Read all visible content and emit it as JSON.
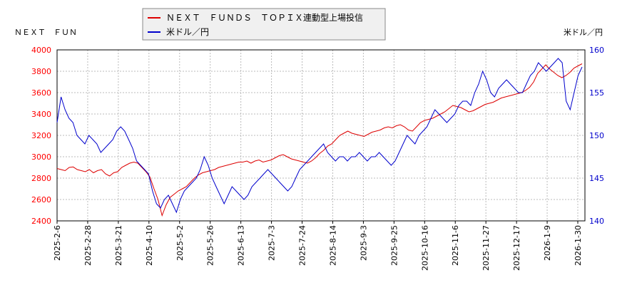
{
  "chart_data": {
    "type": "line",
    "left_axis_title": "ＮＥＸＴ　ＦＵＮ",
    "right_axis_title": "米ドル／円",
    "legend_position": "top-center",
    "grid": true,
    "x_ticks": [
      "2025-2-6",
      "2025-2-28",
      "2025-3-21",
      "2025-4-10",
      "2025-5-2",
      "2025-5-26",
      "2025-6-13",
      "2025-7-3",
      "2025-7-24",
      "2025-8-14",
      "2025-9-3",
      "2025-9-25",
      "2025-10-16",
      "2025-11-6",
      "2025-11-27",
      "2025-12-17",
      "2026-1-9",
      "2026-1-30"
    ],
    "y_left": {
      "min": 2400,
      "max": 4000,
      "ticks": [
        2400,
        2600,
        2800,
        3000,
        3200,
        3400,
        3600,
        3800,
        4000
      ],
      "color": "#ff0000"
    },
    "y_right": {
      "min": 140,
      "max": 160,
      "ticks": [
        140,
        145,
        150,
        155,
        160
      ],
      "color": "#0000cc"
    },
    "series": [
      {
        "name": "ＮＥＸＴ　ＦＵＮＤＳ　ＴＯＰＩＸ連動型上場投信",
        "axis": "left",
        "color": "#dd0000",
        "values": [
          2890,
          2880,
          2870,
          2900,
          2905,
          2880,
          2870,
          2860,
          2880,
          2850,
          2870,
          2880,
          2840,
          2820,
          2850,
          2860,
          2900,
          2920,
          2940,
          2950,
          2940,
          2900,
          2860,
          2810,
          2700,
          2600,
          2450,
          2550,
          2620,
          2650,
          2680,
          2700,
          2720,
          2760,
          2800,
          2830,
          2850,
          2860,
          2870,
          2880,
          2900,
          2910,
          2920,
          2930,
          2940,
          2950,
          2950,
          2960,
          2940,
          2960,
          2970,
          2950,
          2960,
          2970,
          2990,
          3010,
          3020,
          3000,
          2980,
          2970,
          2960,
          2950,
          2940,
          2960,
          2990,
          3030,
          3060,
          3100,
          3120,
          3160,
          3200,
          3220,
          3240,
          3220,
          3210,
          3200,
          3190,
          3210,
          3230,
          3240,
          3250,
          3270,
          3280,
          3270,
          3290,
          3300,
          3280,
          3250,
          3240,
          3280,
          3320,
          3340,
          3350,
          3360,
          3380,
          3400,
          3420,
          3450,
          3480,
          3470,
          3460,
          3440,
          3420,
          3430,
          3450,
          3470,
          3490,
          3500,
          3510,
          3530,
          3550,
          3560,
          3570,
          3580,
          3590,
          3600,
          3620,
          3650,
          3700,
          3780,
          3820,
          3860,
          3820,
          3790,
          3760,
          3740,
          3760,
          3790,
          3830,
          3850,
          3870
        ]
      },
      {
        "name": "米ドル／円",
        "axis": "right",
        "color": "#0000cc",
        "values": [
          151.5,
          154.5,
          153,
          152,
          151.5,
          150,
          149.5,
          149,
          150,
          149.5,
          149,
          148,
          148.5,
          149,
          149.5,
          150.5,
          151,
          150.5,
          149.5,
          148.5,
          147,
          146.5,
          146,
          145.5,
          143.5,
          142,
          141.5,
          142.5,
          143,
          142,
          141,
          142.5,
          143.5,
          144,
          144.5,
          145,
          146,
          147.5,
          146.5,
          145,
          144,
          143,
          142,
          143,
          144,
          143.5,
          143,
          142.5,
          143,
          144,
          144.5,
          145,
          145.5,
          146,
          145.5,
          145,
          144.5,
          144,
          143.5,
          144,
          145,
          146,
          146.5,
          147,
          147.5,
          148,
          148.5,
          149,
          148,
          147.5,
          147,
          147.5,
          147.5,
          147,
          147.5,
          147.5,
          148,
          147.5,
          147,
          147.5,
          147.5,
          148,
          147.5,
          147,
          146.5,
          147,
          148,
          149,
          150,
          149.5,
          149,
          150,
          150.5,
          151,
          152,
          153,
          152.5,
          152,
          151.5,
          152,
          152.5,
          153.5,
          154,
          154,
          153.5,
          155,
          156,
          157.5,
          156.5,
          155,
          154.5,
          155.5,
          156,
          156.5,
          156,
          155.5,
          155,
          155,
          156,
          157,
          157.5,
          158.5,
          158,
          157.5,
          158,
          158.5,
          159,
          158.5,
          154,
          153,
          155,
          157,
          158
        ]
      }
    ]
  }
}
